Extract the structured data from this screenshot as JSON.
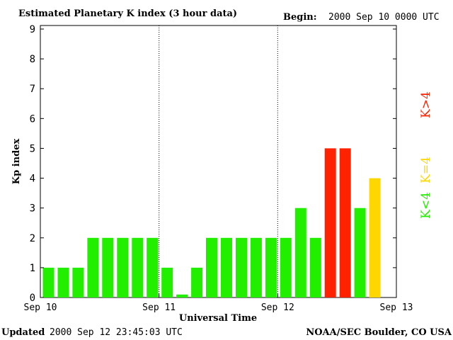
{
  "chart_data": {
    "type": "bar",
    "title": "Estimated Planetary K index (3 hour data)",
    "begin_label": "Begin:",
    "begin_value": "2000 Sep 10 0000 UTC",
    "xlabel": "Universal Time",
    "ylabel": "Kp index",
    "ylim": [
      0,
      9
    ],
    "yticks": [
      0,
      1,
      2,
      3,
      4,
      5,
      6,
      7,
      8,
      9
    ],
    "x_tick_labels": [
      "Sep 10",
      "Sep 11",
      "Sep 12",
      "Sep 13"
    ],
    "day_separators": [
      "Sep 11",
      "Sep 12"
    ],
    "values": [
      1,
      1,
      1,
      2,
      2,
      2,
      2,
      2,
      1,
      0.1,
      1,
      2,
      2,
      2,
      2,
      2,
      2,
      3,
      2,
      5,
      5,
      3,
      4
    ],
    "color_legend": [
      {
        "label": "K<4",
        "color": "#22ee00"
      },
      {
        "label": "K=4",
        "color": "#ffd700"
      },
      {
        "label": "K>4",
        "color": "#ff2200"
      }
    ],
    "grid": false
  },
  "footer": {
    "updated_label": "Updated",
    "updated_value": "2000 Sep 12 23:45:03 UTC",
    "source": "NOAA/SEC Boulder, CO USA"
  }
}
